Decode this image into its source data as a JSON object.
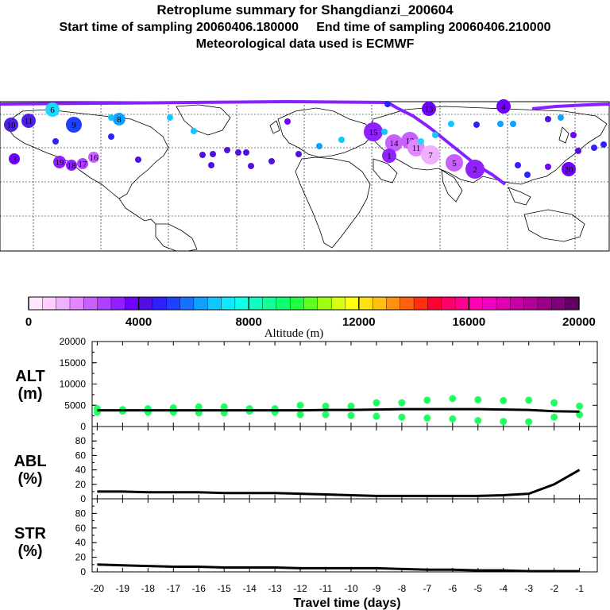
{
  "title": {
    "line1": "Retroplume summary for Shangdianzi_200604",
    "start_label": "Start time of sampling 20060406.180000",
    "end_label": "End time of sampling 20060406.210000",
    "line3": "Meteorological data used is ECMWF"
  },
  "colorbar": {
    "label": "Altitude (m)",
    "tick_labels": [
      "0",
      "4000",
      "8000",
      "12000",
      "16000",
      "20000"
    ],
    "colors": [
      "#ffe8ff",
      "#ffd0ff",
      "#f0b0ff",
      "#e088ff",
      "#c860ff",
      "#b040ff",
      "#9020ff",
      "#7000ff",
      "#5010e0",
      "#3020ff",
      "#2040ff",
      "#1870ff",
      "#10a0ff",
      "#10c8ff",
      "#10e8ff",
      "#10ffe8",
      "#10ffc0",
      "#10ff98",
      "#10ff70",
      "#20ff40",
      "#60ff20",
      "#a0ff10",
      "#d8ff10",
      "#ffff10",
      "#ffe010",
      "#ffc010",
      "#ff9010",
      "#ff6010",
      "#ff3010",
      "#ff0030",
      "#ff0068",
      "#ff0090",
      "#ff00b0",
      "#f000c0",
      "#e000b0",
      "#c800a8",
      "#b00098",
      "#980088",
      "#800078",
      "#600060"
    ]
  },
  "map": {
    "plume_labels": [
      "6",
      "10",
      "11",
      "9",
      "13",
      "3",
      "19",
      "18",
      "17",
      "16",
      "15",
      "14",
      "12",
      "11",
      "7",
      "5",
      "2",
      "4",
      "20",
      "8",
      "1"
    ]
  },
  "chart_data": [
    {
      "type": "line",
      "panel": "ALT",
      "ylabel": "ALT (m)",
      "ylim": [
        0,
        20000
      ],
      "yticks": [
        "0",
        "5000",
        "10000",
        "15000",
        "20000"
      ],
      "x": [
        -20,
        -19,
        -18,
        -17,
        -16,
        -15,
        -14,
        -13,
        -12,
        -11,
        -10,
        -9,
        -8,
        -7,
        -6,
        -5,
        -4,
        -3,
        -2,
        -1
      ],
      "mean_line": [
        3800,
        3800,
        3800,
        3800,
        3800,
        3800,
        3800,
        3800,
        3800,
        3900,
        3900,
        4000,
        4100,
        4100,
        4100,
        4100,
        4000,
        3900,
        3600,
        3500
      ],
      "points_upper": [
        4200,
        4000,
        4200,
        4400,
        4600,
        4600,
        4200,
        4200,
        5000,
        4800,
        4800,
        5600,
        5600,
        6200,
        6600,
        6300,
        6100,
        6200,
        5600,
        4800
      ],
      "points_lower": [
        3400,
        3600,
        3400,
        3400,
        3200,
        3200,
        3600,
        3400,
        2800,
        2800,
        2600,
        2400,
        2200,
        2000,
        1800,
        1400,
        1200,
        1100,
        2200,
        2800
      ]
    },
    {
      "type": "line",
      "panel": "ABL",
      "ylabel": "ABL (%)",
      "ylim": [
        0,
        100
      ],
      "yticks": [
        "0",
        "20",
        "40",
        "60",
        "80"
      ],
      "x": [
        -20,
        -19,
        -18,
        -17,
        -16,
        -15,
        -14,
        -13,
        -12,
        -11,
        -10,
        -9,
        -8,
        -7,
        -6,
        -5,
        -4,
        -3,
        -2,
        -1
      ],
      "values": [
        10,
        10,
        9,
        9,
        9,
        8,
        8,
        8,
        7,
        6,
        5,
        4,
        4,
        4,
        4,
        4,
        5,
        7,
        20,
        40
      ]
    },
    {
      "type": "line",
      "panel": "STR",
      "ylabel": "STR (%)",
      "ylim": [
        0,
        100
      ],
      "yticks": [
        "0",
        "20",
        "40",
        "60",
        "80"
      ],
      "x": [
        -20,
        -19,
        -18,
        -17,
        -16,
        -15,
        -14,
        -13,
        -12,
        -11,
        -10,
        -9,
        -8,
        -7,
        -6,
        -5,
        -4,
        -3,
        -2,
        -1
      ],
      "values": [
        10,
        9,
        8,
        7,
        7,
        6,
        6,
        6,
        5,
        5,
        5,
        5,
        4,
        3,
        3,
        2,
        2,
        1,
        1,
        1
      ],
      "xlabel": "Travel time (days)",
      "xtick_labels": [
        "-20",
        "-19",
        "-18",
        "-17",
        "-16",
        "-15",
        "-14",
        "-13",
        "-12",
        "-11",
        "-10",
        "-9",
        "-8",
        "-7",
        "-6",
        "-5",
        "-4",
        "-3",
        "-2",
        "-1"
      ]
    }
  ]
}
